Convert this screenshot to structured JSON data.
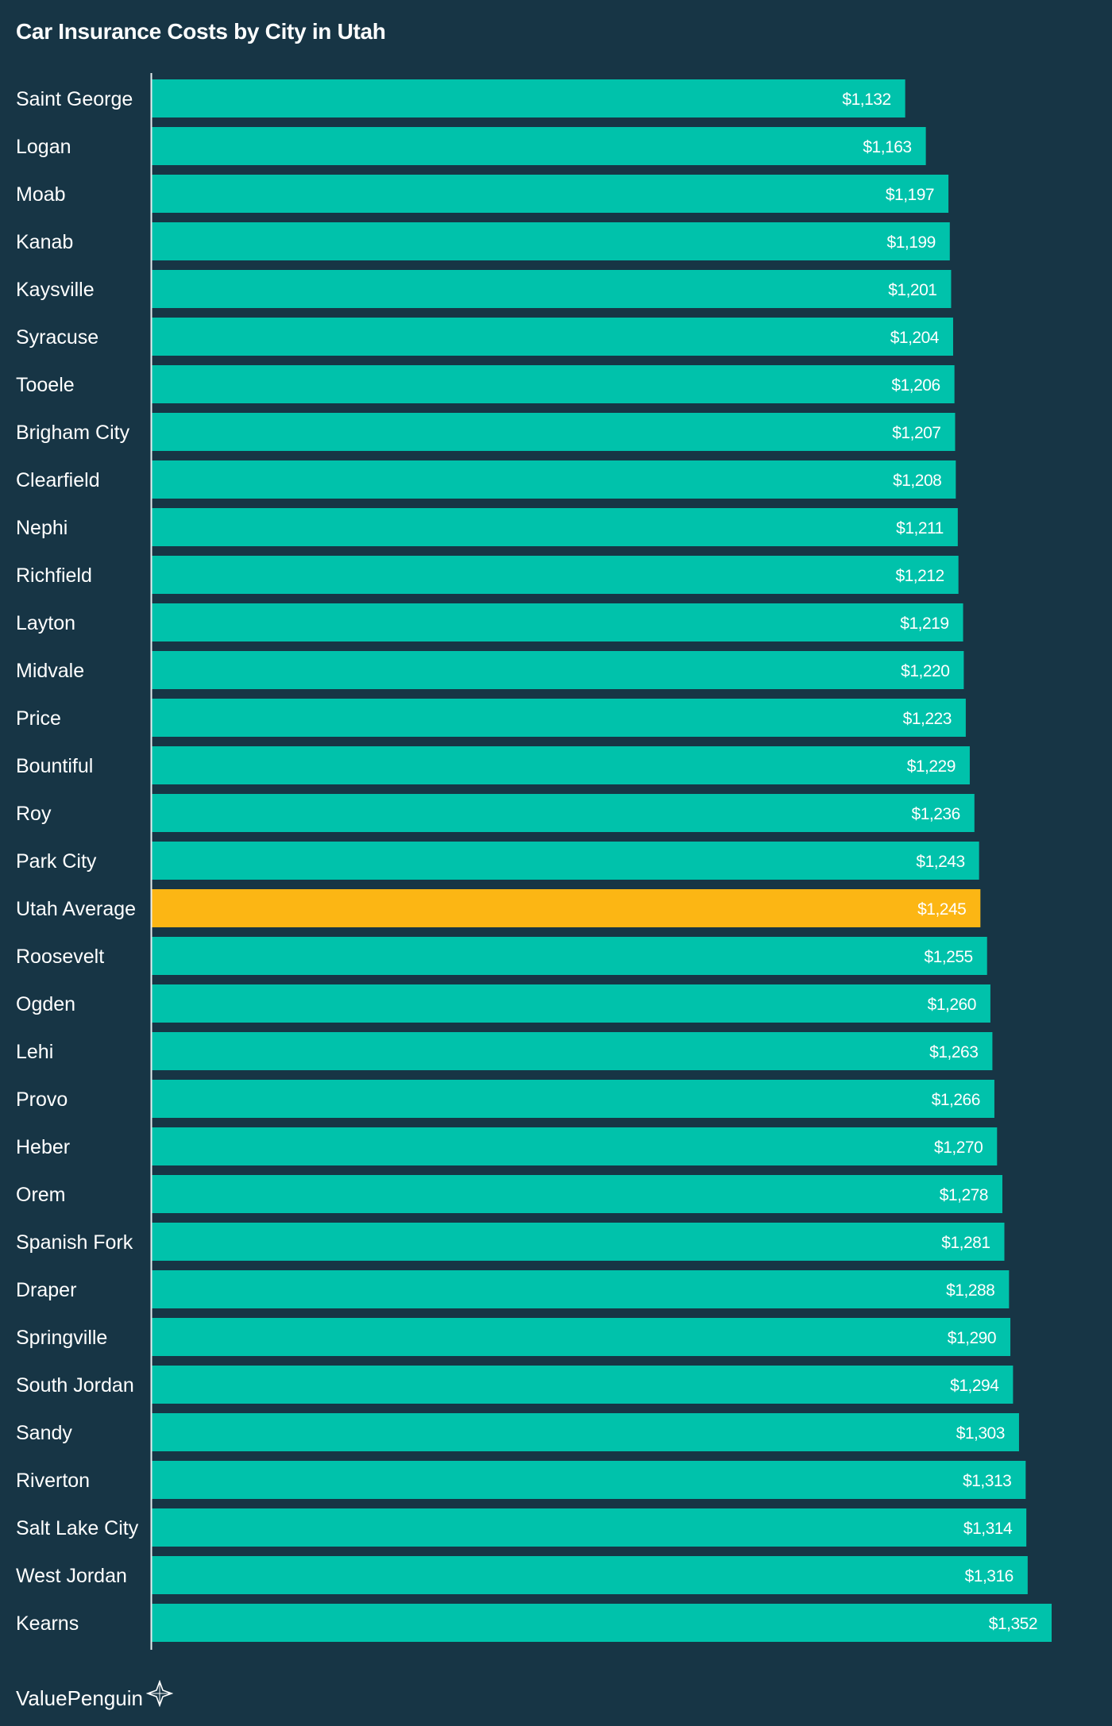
{
  "brand": {
    "name": "ValuePenguin",
    "icon": "compass-star-icon"
  },
  "colors": {
    "background": "#173545",
    "bar": "#00c2ab",
    "highlight": "#fcb614",
    "axis": "#e8eef0"
  },
  "chart_data": {
    "type": "bar",
    "orientation": "horizontal",
    "title": "Car Insurance Costs by City in Utah",
    "xlabel": "",
    "ylabel": "",
    "value_format": "$",
    "highlight_category": "Utah Average",
    "xlim": [
      0,
      1352
    ],
    "grid": false,
    "categories": [
      "Saint George",
      "Logan",
      "Moab",
      "Kanab",
      "Kaysville",
      "Syracuse",
      "Tooele",
      "Brigham City",
      "Clearfield",
      "Nephi",
      "Richfield",
      "Layton",
      "Midvale",
      "Price",
      "Bountiful",
      "Roy",
      "Park City",
      "Utah Average",
      "Roosevelt",
      "Ogden",
      "Lehi",
      "Provo",
      "Heber",
      "Orem",
      "Spanish Fork",
      "Draper",
      "Springville",
      "South Jordan",
      "Sandy",
      "Riverton",
      "Salt Lake City",
      "West Jordan",
      "Kearns"
    ],
    "values": [
      1132,
      1163,
      1197,
      1199,
      1201,
      1204,
      1206,
      1207,
      1208,
      1211,
      1212,
      1219,
      1220,
      1223,
      1229,
      1236,
      1243,
      1245,
      1255,
      1260,
      1263,
      1266,
      1270,
      1278,
      1281,
      1288,
      1290,
      1294,
      1303,
      1313,
      1314,
      1316,
      1352
    ],
    "data_labels": [
      "$1,132",
      "$1,163",
      "$1,197",
      "$1,199",
      "$1,201",
      "$1,204",
      "$1,206",
      "$1,207",
      "$1,208",
      "$1,211",
      "$1,212",
      "$1,219",
      "$1,220",
      "$1,223",
      "$1,229",
      "$1,236",
      "$1,243",
      "$1,245",
      "$1,255",
      "$1,260",
      "$1,263",
      "$1,266",
      "$1,270",
      "$1,278",
      "$1,281",
      "$1,288",
      "$1,290",
      "$1,294",
      "$1,303",
      "$1,313",
      "$1,314",
      "$1,316",
      "$1,352"
    ]
  }
}
